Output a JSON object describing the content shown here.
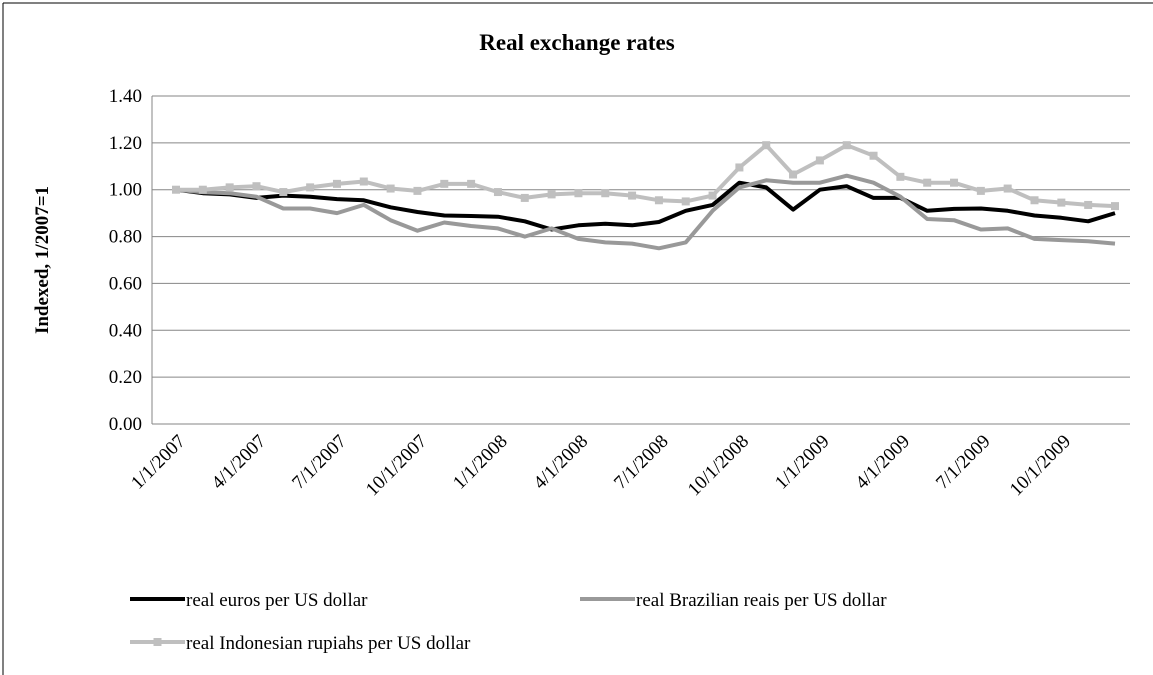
{
  "chart_data": {
    "type": "line",
    "title": "Real exchange rates",
    "y_label": "Indexed, 1/2007=1",
    "categories": [
      "1/1/2007",
      null,
      null,
      "4/1/2007",
      null,
      null,
      "7/1/2007",
      null,
      null,
      "10/1/2007",
      null,
      null,
      "1/1/2008",
      null,
      null,
      "4/1/2008",
      null,
      null,
      "7/1/2008",
      null,
      null,
      "10/1/2008",
      null,
      null,
      "1/1/2009",
      null,
      null,
      "4/1/2009",
      null,
      null,
      "7/1/2009",
      null,
      null,
      "10/1/2009",
      null,
      null
    ],
    "series": [
      {
        "name": "real euros per US dollar",
        "color": "#000000",
        "marker": false,
        "values": [
          1.0,
          0.985,
          0.98,
          0.965,
          0.975,
          0.97,
          0.96,
          0.955,
          0.925,
          0.905,
          0.89,
          0.888,
          0.885,
          0.865,
          0.83,
          0.848,
          0.855,
          0.848,
          0.862,
          0.91,
          0.935,
          1.03,
          1.01,
          0.915,
          1.0,
          1.015,
          0.965,
          0.965,
          0.91,
          0.918,
          0.92,
          0.91,
          0.89,
          0.88,
          0.865,
          0.9
        ]
      },
      {
        "name": "real Brazilian reais per US dollar",
        "color": "#999999",
        "marker": false,
        "values": [
          1.0,
          0.99,
          0.985,
          0.97,
          0.92,
          0.92,
          0.9,
          0.935,
          0.87,
          0.825,
          0.86,
          0.845,
          0.835,
          0.8,
          0.835,
          0.79,
          0.775,
          0.77,
          0.75,
          0.775,
          0.91,
          1.01,
          1.04,
          1.03,
          1.03,
          1.06,
          1.03,
          0.97,
          0.875,
          0.87,
          0.83,
          0.835,
          0.79,
          0.785,
          0.78,
          0.77
        ]
      },
      {
        "name": "real Indonesian rupiahs per US dollar",
        "color": "#bfbfbf",
        "marker": true,
        "values": [
          1.0,
          1.0,
          1.01,
          1.015,
          0.99,
          1.01,
          1.025,
          1.035,
          1.005,
          0.995,
          1.025,
          1.025,
          0.99,
          0.965,
          0.98,
          0.985,
          0.985,
          0.975,
          0.955,
          0.95,
          0.975,
          1.095,
          1.19,
          1.065,
          1.125,
          1.19,
          1.145,
          1.055,
          1.03,
          1.03,
          0.995,
          1.005,
          0.955,
          0.945,
          0.935,
          0.93
        ]
      }
    ],
    "ylim": [
      0,
      1.4
    ],
    "yticks": [
      {
        "value": 0,
        "label": "0.00"
      },
      {
        "value": 0.2,
        "label": "0.20"
      },
      {
        "value": 0.4,
        "label": "0.40"
      },
      {
        "value": 0.6,
        "label": "0.60"
      },
      {
        "value": 0.8,
        "label": "0.80"
      },
      {
        "value": 1,
        "label": "1.00"
      },
      {
        "value": 1.2,
        "label": "1.20"
      },
      {
        "value": 1.4,
        "label": "1.40"
      }
    ],
    "grid": true,
    "legend": "bottom"
  }
}
